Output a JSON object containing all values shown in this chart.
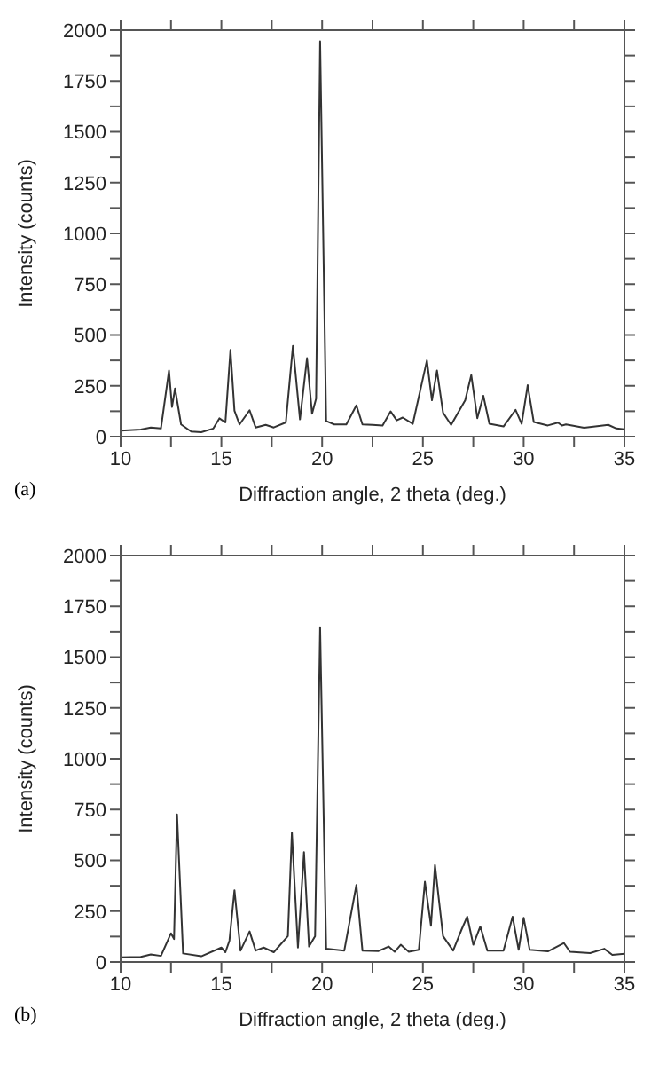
{
  "chart_data": [
    {
      "type": "line",
      "xlabel": "Diffraction angle, 2 theta (deg.)",
      "ylabel": "Intensity (counts)",
      "annotations": [
        "(a)"
      ],
      "x": [
        10,
        11,
        11.5,
        12,
        12.4,
        12.55,
        12.7,
        13,
        13.5,
        14,
        14.6,
        14.9,
        15.2,
        15.45,
        15.65,
        15.9,
        16.4,
        16.7,
        17.2,
        17.6,
        18.2,
        18.55,
        18.9,
        19.25,
        19.5,
        19.7,
        19.9,
        20.2,
        20.6,
        21.2,
        21.7,
        22.0,
        22.5,
        23.0,
        23.4,
        23.7,
        24.0,
        24.5,
        25.2,
        25.45,
        25.7,
        26.0,
        26.4,
        27.1,
        27.4,
        27.7,
        28.0,
        28.3,
        29.0,
        29.6,
        29.9,
        30.2,
        30.5,
        31.2,
        31.7,
        31.9,
        32.1,
        33.0,
        34.2,
        34.6,
        35
      ],
      "series": [
        {
          "color": "#333333",
          "values": [
            30,
            35,
            45,
            40,
            325,
            146,
            237,
            60,
            25,
            22,
            40,
            90,
            70,
            427,
            127,
            60,
            130,
            45,
            58,
            45,
            70,
            446,
            85,
            386,
            113,
            187,
            1945,
            77,
            60,
            60,
            154,
            60,
            58,
            55,
            124,
            80,
            94,
            63,
            375,
            179,
            325,
            118,
            58,
            179,
            303,
            91,
            201,
            63,
            50,
            132,
            63,
            253,
            72,
            55,
            69,
            55,
            60,
            44,
            58,
            40,
            36
          ]
        }
      ],
      "xlim": [
        10,
        35
      ],
      "xticks": [
        10,
        {
          "value": 12.5,
          "label": null
        },
        15,
        {
          "value": 17.5,
          "label": null
        },
        20,
        {
          "value": 22.5,
          "label": null
        },
        25,
        {
          "value": 27.5,
          "label": null
        },
        30,
        {
          "value": 32.5,
          "label": null
        },
        35
      ],
      "ylim": [
        0,
        2000
      ],
      "yticks": [
        0,
        {
          "value": 125,
          "label": null
        },
        250,
        {
          "value": 375,
          "label": null
        },
        500,
        {
          "value": 625,
          "label": null
        },
        750,
        {
          "value": 875,
          "label": null
        },
        1000,
        {
          "value": 1125,
          "label": null
        },
        1250,
        {
          "value": 1375,
          "label": null
        },
        1500,
        {
          "value": 1625,
          "label": null
        },
        1750,
        {
          "value": 1875,
          "label": null
        },
        2000
      ],
      "grid": false,
      "legend": false,
      "marker": "none",
      "line_style": "solid"
    },
    {
      "type": "line",
      "xlabel": "Diffraction angle, 2 theta (deg.)",
      "ylabel": "Intensity (counts)",
      "annotations": [
        "(b)"
      ],
      "x": [
        10,
        11,
        11.5,
        12,
        12.5,
        12.65,
        12.8,
        13.1,
        14,
        15.0,
        15.2,
        15.4,
        15.65,
        15.95,
        16.4,
        16.7,
        17.1,
        17.6,
        18.3,
        18.5,
        18.8,
        19.1,
        19.35,
        19.65,
        19.9,
        20.2,
        21.1,
        21.7,
        22.0,
        22.8,
        23.3,
        23.6,
        23.9,
        24.3,
        24.8,
        25.1,
        25.4,
        25.6,
        26.0,
        26.5,
        26.9,
        27.2,
        27.5,
        27.85,
        28.2,
        29.0,
        29.45,
        29.75,
        30.0,
        30.3,
        31.2,
        32.0,
        32.3,
        33.3,
        34.0,
        34.4,
        35
      ],
      "series": [
        {
          "color": "#333333",
          "values": [
            23,
            25,
            37,
            30,
            141,
            113,
            726,
            42,
            28,
            71,
            48,
            105,
            353,
            56,
            150,
            56,
            71,
            48,
            127,
            636,
            71,
            540,
            76,
            127,
            1647,
            65,
            56,
            379,
            56,
            54,
            76,
            50,
            85,
            50,
            60,
            395,
            178,
            477,
            127,
            56,
            155,
            223,
            85,
            175,
            56,
            56,
            223,
            60,
            217,
            60,
            52,
            93,
            50,
            44,
            65,
            35,
            40
          ]
        }
      ],
      "xlim": [
        10,
        35
      ],
      "xticks": [
        10,
        {
          "value": 12.5,
          "label": null
        },
        15,
        {
          "value": 17.5,
          "label": null
        },
        20,
        {
          "value": 22.5,
          "label": null
        },
        25,
        {
          "value": 27.5,
          "label": null
        },
        30,
        {
          "value": 32.5,
          "label": null
        },
        35
      ],
      "ylim": [
        0,
        2000
      ],
      "yticks": [
        0,
        {
          "value": 125,
          "label": null
        },
        250,
        {
          "value": 375,
          "label": null
        },
        500,
        {
          "value": 625,
          "label": null
        },
        750,
        {
          "value": 875,
          "label": null
        },
        1000,
        {
          "value": 1125,
          "label": null
        },
        1250,
        {
          "value": 1375,
          "label": null
        },
        1500,
        {
          "value": 1625,
          "label": null
        },
        1750,
        {
          "value": 1875,
          "label": null
        },
        2000
      ],
      "grid": false,
      "legend": false,
      "marker": "none",
      "line_style": "solid"
    }
  ]
}
